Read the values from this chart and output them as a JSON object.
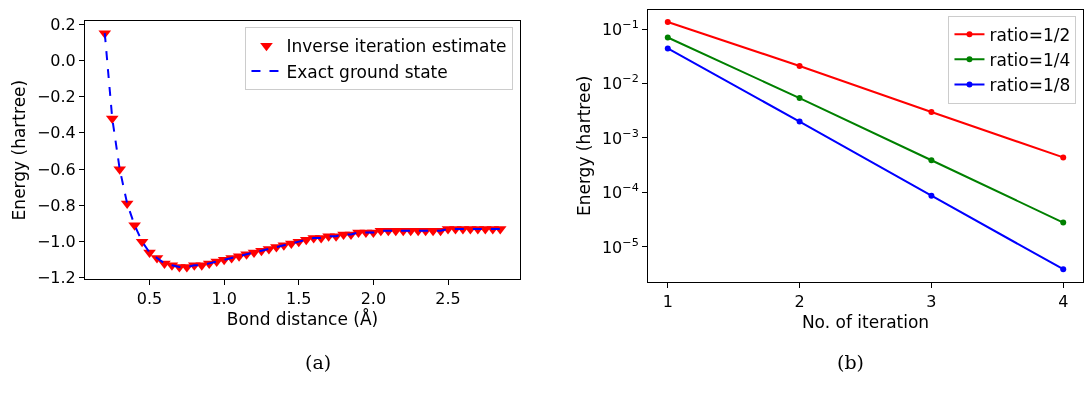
{
  "chart_data": [
    {
      "type": "line",
      "xlabel": "Bond distance (Å)",
      "ylabel": "Energy (hartree)",
      "x": [
        0.2,
        0.25,
        0.3,
        0.35,
        0.4,
        0.45,
        0.5,
        0.55,
        0.6,
        0.65,
        0.7,
        0.75,
        0.8,
        0.85,
        0.9,
        0.95,
        1.0,
        1.05,
        1.1,
        1.15,
        1.2,
        1.25,
        1.3,
        1.35,
        1.4,
        1.45,
        1.5,
        1.55,
        1.6,
        1.65,
        1.7,
        1.75,
        1.8,
        1.85,
        1.9,
        1.95,
        2.0,
        2.05,
        2.1,
        2.15,
        2.2,
        2.25,
        2.3,
        2.35,
        2.4,
        2.45,
        2.5,
        2.55,
        2.6,
        2.65,
        2.7,
        2.75,
        2.8,
        2.85
      ],
      "series": [
        {
          "name": "Inverse iteration estimate",
          "type": "scatter",
          "marker": "triangle",
          "color": "#ff0000",
          "values": [
            0.15,
            -0.32,
            -0.6,
            -0.79,
            -0.91,
            -1.0,
            -1.06,
            -1.09,
            -1.12,
            -1.13,
            -1.14,
            -1.14,
            -1.13,
            -1.13,
            -1.12,
            -1.11,
            -1.1,
            -1.09,
            -1.08,
            -1.07,
            -1.06,
            -1.05,
            -1.04,
            -1.03,
            -1.02,
            -1.01,
            -1.0,
            -0.99,
            -0.98,
            -0.98,
            -0.97,
            -0.97,
            -0.96,
            -0.96,
            -0.95,
            -0.95,
            -0.95,
            -0.94,
            -0.94,
            -0.94,
            -0.94,
            -0.94,
            -0.94,
            -0.94,
            -0.94,
            -0.94,
            -0.93,
            -0.93,
            -0.93,
            -0.93,
            -0.93,
            -0.93,
            -0.93,
            -0.93
          ]
        },
        {
          "name": "Exact ground state",
          "type": "line",
          "line_style": "dashed",
          "color": "#0000ff",
          "values": [
            0.15,
            -0.32,
            -0.6,
            -0.79,
            -0.91,
            -1.0,
            -1.06,
            -1.09,
            -1.12,
            -1.13,
            -1.14,
            -1.14,
            -1.13,
            -1.13,
            -1.12,
            -1.11,
            -1.1,
            -1.09,
            -1.08,
            -1.07,
            -1.06,
            -1.05,
            -1.04,
            -1.03,
            -1.02,
            -1.01,
            -1.0,
            -0.99,
            -0.98,
            -0.98,
            -0.97,
            -0.97,
            -0.96,
            -0.96,
            -0.95,
            -0.95,
            -0.95,
            -0.94,
            -0.94,
            -0.94,
            -0.94,
            -0.94,
            -0.94,
            -0.94,
            -0.94,
            -0.94,
            -0.93,
            -0.93,
            -0.93,
            -0.93,
            -0.93,
            -0.93,
            -0.93,
            -0.93
          ]
        }
      ],
      "xlim": [
        0.0675,
        2.9825
      ],
      "xticks": [
        {
          "value": 0.5,
          "label": "0.5"
        },
        {
          "value": 1.0,
          "label": "1.0"
        },
        {
          "value": 1.5,
          "label": "1.5"
        },
        {
          "value": 2.0,
          "label": "2.0"
        },
        {
          "value": 2.5,
          "label": "2.5"
        }
      ],
      "ylim": [
        -1.205,
        0.215
      ],
      "yticks": [
        {
          "value": 0.2,
          "label": "0.2"
        },
        {
          "value": 0.0,
          "label": "0.0"
        },
        {
          "value": -0.2,
          "label": "−0.2"
        },
        {
          "value": -0.4,
          "label": "−0.4"
        },
        {
          "value": -0.6,
          "label": "−0.6"
        },
        {
          "value": -0.8,
          "label": "−0.8"
        },
        {
          "value": -1.0,
          "label": "−1.0"
        },
        {
          "value": -1.2,
          "label": "−1.2"
        }
      ],
      "legend": "top right",
      "annotations": [
        "(a)"
      ]
    },
    {
      "type": "line",
      "xlabel": "No. of iteration",
      "ylabel": "Energy (hartree)",
      "log": "y",
      "marker": "circle",
      "line_style": "solid",
      "x": [
        1,
        2,
        3,
        4
      ],
      "series": [
        {
          "name": "ratio=1/2",
          "color": "#ff0000",
          "values": [
            0.135,
            0.021,
            0.003,
            0.00044
          ]
        },
        {
          "name": "ratio=1/4",
          "color": "#008000",
          "values": [
            0.07,
            0.0054,
            0.00039,
            2.8e-05
          ]
        },
        {
          "name": "ratio=1/8",
          "color": "#0000ff",
          "values": [
            0.044,
            0.002,
            8.7e-05,
            3.9e-06
          ]
        }
      ],
      "xlim": [
        0.85,
        4.15
      ],
      "xticks": [
        1,
        2,
        3,
        4
      ],
      "ylim": [
        2.3e-06,
        0.225
      ],
      "yticks": [
        {
          "value": 0.1,
          "label": "10$^{−1}$"
        },
        {
          "value": 0.01,
          "label": "10$^{−2}$"
        },
        {
          "value": 0.001,
          "label": "10$^{−3}$"
        },
        {
          "value": 0.0001,
          "label": "10$^{−4}$"
        },
        {
          "value": 1e-05,
          "label": "10$^{−5}$"
        }
      ],
      "legend": "top right",
      "annotations": [
        "(b)"
      ]
    }
  ]
}
